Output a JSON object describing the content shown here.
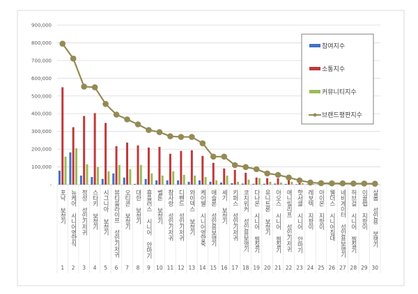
{
  "chart_data": {
    "type": "bar",
    "title": "",
    "xlabel": "",
    "ylabel": "",
    "ylim": [
      0,
      900000
    ],
    "yticks": [
      0,
      100000,
      200000,
      300000,
      400000,
      500000,
      600000,
      700000,
      800000,
      900000
    ],
    "ytick_labels": [
      "-",
      "100,000",
      "200,000",
      "300,000",
      "400,000",
      "500,000",
      "600,000",
      "700,000",
      "800,000",
      "900,000"
    ],
    "grid": true,
    "legend_placement": "top-right",
    "categories": [
      "포낙 보청기",
      "뉴케어 시니어영양식",
      "정성 성인기저귀",
      "스타키 보청기",
      "시그니아 보청기",
      "뷰티풀라이프 성인기저귀",
      "오티콘 보청기",
      "대한 보청기",
      "휴플러스 시니어 안마기",
      "벨톤 보청기",
      "참사랑 성인기저귀",
      "디펜드 성인기저귀",
      "와이덱스 보청기",
      "케어웰 시니어영양죽",
      "애슬론 성인용보행기",
      "세기 보청기",
      "키퍼스 성인기저귀",
      "코지워커 성인용보행기",
      "다나온 시니어 찜질기",
      "유니트론 보청기",
      "아오스 시니어 찜질기",
      "애니릴리프 성인기저귀",
      "핫서클 시니어 안마기",
      "레보텍 지팡이",
      "아이온 지팡이",
      "웰더스 시니어침대",
      "네비게이터 성인용보행기",
      "허브걸 시니어 찜질기",
      "이끌렙 지팡이",
      "살롬 성인용 보행기"
    ],
    "category_numbers": [
      "1",
      "2",
      "3",
      "4",
      "5",
      "6",
      "7",
      "8",
      "9",
      "10",
      "11",
      "12",
      "13",
      "14",
      "15",
      "16",
      "17",
      "18",
      "19",
      "20",
      "21",
      "22",
      "23",
      "24",
      "25",
      "26",
      "27",
      "28",
      "29",
      "30"
    ],
    "series": [
      {
        "name": "참여지수",
        "type": "bar",
        "color": "#4472c4",
        "values": [
          79000,
          182000,
          51000,
          43000,
          32000,
          63000,
          40000,
          4000,
          32000,
          24000,
          24000,
          24000,
          16000,
          24000,
          16000,
          12000,
          8000,
          6000,
          5000,
          5000,
          6000,
          4000,
          3000,
          2000,
          2000,
          2000,
          2000,
          1000,
          1000,
          1000
        ]
      },
      {
        "name": "소통지수",
        "type": "bar",
        "color": "#c0393b",
        "values": [
          549000,
          324000,
          387000,
          403000,
          348000,
          217000,
          237000,
          221000,
          209000,
          213000,
          174000,
          190000,
          194000,
          162000,
          123000,
          91000,
          83000,
          67000,
          40000,
          36000,
          36000,
          24000,
          16000,
          5000,
          4000,
          3000,
          3000,
          3000,
          2000,
          2000
        ]
      },
      {
        "name": "커뮤니티지수",
        "type": "bar",
        "color": "#9bbb59",
        "values": [
          158000,
          205000,
          115000,
          99000,
          75000,
          111000,
          87000,
          111000,
          63000,
          51000,
          75000,
          55000,
          51000,
          43000,
          24000,
          51000,
          16000,
          28000,
          36000,
          16000,
          12000,
          16000,
          8000,
          4000,
          3000,
          3000,
          3000,
          3000,
          2000,
          2000
        ]
      },
      {
        "name": "브랜드평판지수",
        "type": "line",
        "color": "#948a54",
        "values": [
          795000,
          711000,
          553000,
          549000,
          455000,
          395000,
          368000,
          340000,
          308000,
          296000,
          273000,
          269000,
          269000,
          233000,
          158000,
          158000,
          110000,
          99000,
          87000,
          63000,
          55000,
          40000,
          24000,
          12000,
          8000,
          7000,
          7000,
          6000,
          6000,
          5000
        ]
      }
    ]
  }
}
